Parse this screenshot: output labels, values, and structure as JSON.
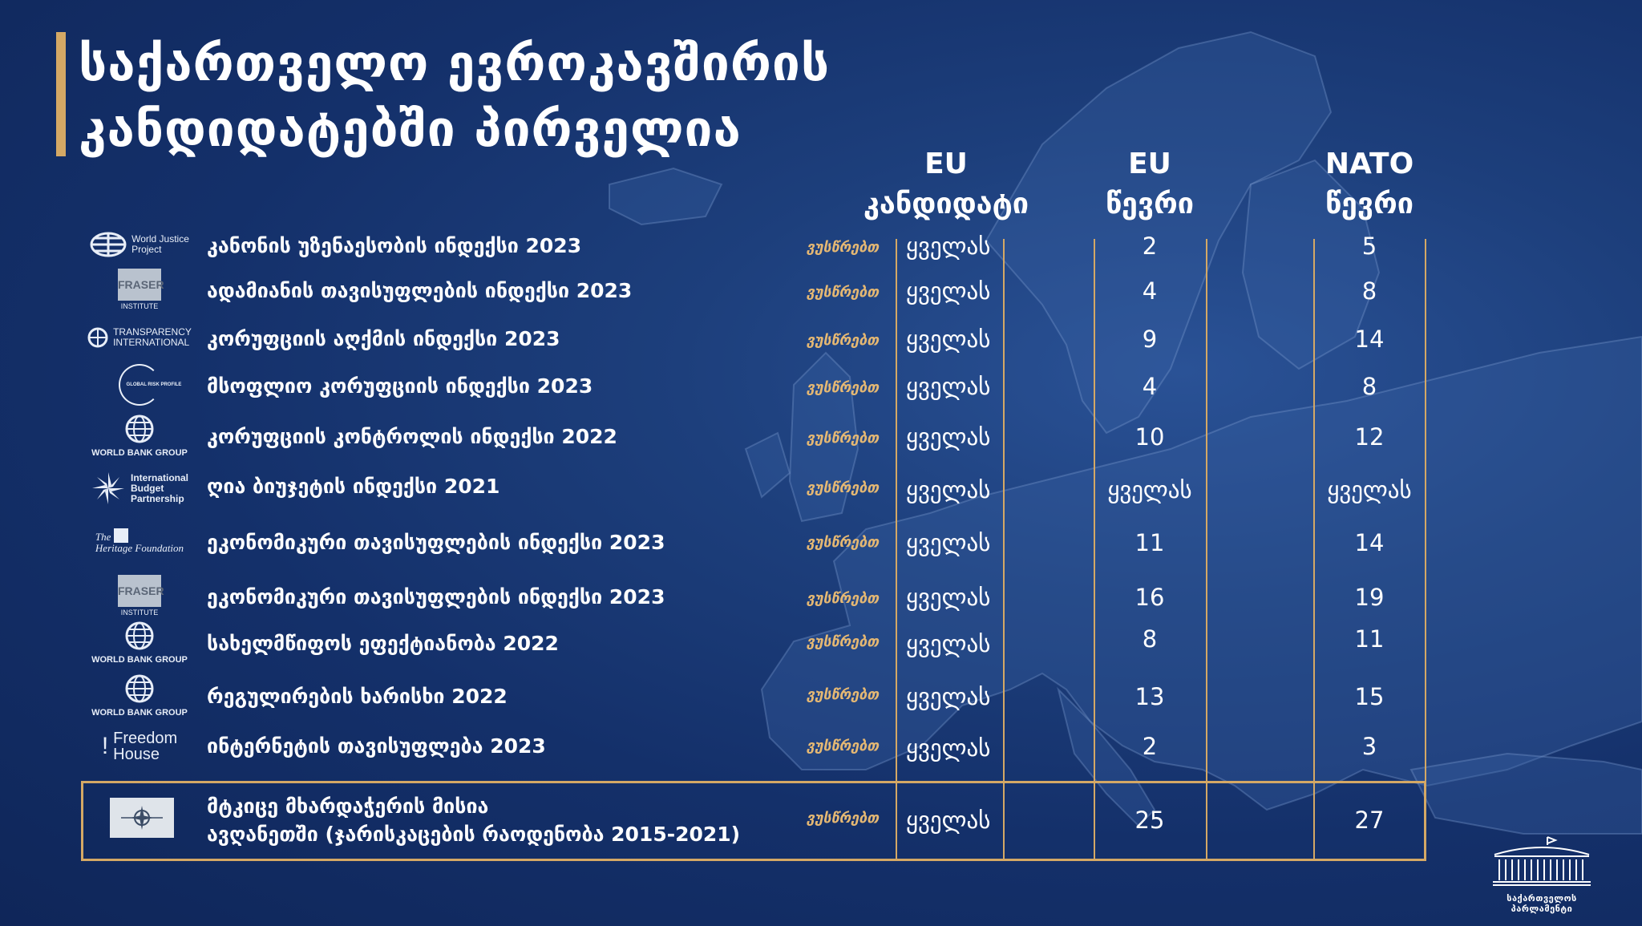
{
  "title": {
    "line1": "საქართველო ევროკავშირის",
    "line2": "კანდიდატებში პირველია"
  },
  "columns": {
    "eu_candidate": {
      "line1": "EU",
      "line2": "კანდიდატი"
    },
    "eu_member": {
      "line1": "EU",
      "line2": "წევრი"
    },
    "nato_member": {
      "line1": "NATO",
      "line2": "წევრი"
    }
  },
  "leads_label": "ვუსწრებთ",
  "rows": [
    {
      "logo_name": "world-justice-project-logo",
      "logo_text": [
        "World Justice",
        "Project"
      ],
      "label": "კანონის უზენაესობის ინდექსი 2023",
      "eu_candidate": "ყველას",
      "eu_member": "2",
      "nato_member": "5"
    },
    {
      "logo_name": "fraser-institute-logo",
      "logo_text": [
        "FRASER",
        "INSTITUTE"
      ],
      "label": "ადამიანის თავისუფლების ინდექსი 2023",
      "eu_candidate": "ყველას",
      "eu_member": "4",
      "nato_member": "8"
    },
    {
      "logo_name": "transparency-international-logo",
      "logo_text": [
        "TRANSPARENCY",
        "INTERNATIONAL"
      ],
      "label": "კორუფციის აღქმის ინდექსი 2023",
      "eu_candidate": "ყველას",
      "eu_member": "9",
      "nato_member": "14"
    },
    {
      "logo_name": "global-risk-profile-logo",
      "logo_text": [
        "GLOBAL RISK PROFILE"
      ],
      "label": "მსოფლიო კორუფციის ინდექსი 2023",
      "eu_candidate": "ყველას",
      "eu_member": "4",
      "nato_member": "8"
    },
    {
      "logo_name": "world-bank-group-logo",
      "logo_text": [
        "WORLD BANK GROUP"
      ],
      "label": "კორუფციის კონტროლის ინდექსი 2022",
      "eu_candidate": "ყველას",
      "eu_member": "10",
      "nato_member": "12"
    },
    {
      "logo_name": "international-budget-partnership-logo",
      "logo_text": [
        "International",
        "Budget",
        "Partnership"
      ],
      "label": "ღია ბიუჯეტის ინდექსი 2021",
      "eu_candidate": "ყველას",
      "eu_member": "ყველას",
      "nato_member": "ყველას"
    },
    {
      "logo_name": "heritage-foundation-logo",
      "logo_text": [
        "The",
        "Heritage Foundation"
      ],
      "label": "ეკონომიკური თავისუფლების ინდექსი 2023",
      "eu_candidate": "ყველას",
      "eu_member": "11",
      "nato_member": "14"
    },
    {
      "logo_name": "fraser-institute-logo",
      "logo_text": [
        "FRASER",
        "INSTITUTE"
      ],
      "label": "ეკონომიკური თავისუფლების ინდექსი 2023",
      "eu_candidate": "ყველას",
      "eu_member": "16",
      "nato_member": "19"
    },
    {
      "logo_name": "world-bank-group-logo",
      "logo_text": [
        "WORLD BANK GROUP"
      ],
      "label": "სახელმწიფოს ეფექტიანობა 2022",
      "eu_candidate": "ყველას",
      "eu_member": "8",
      "nato_member": "11"
    },
    {
      "logo_name": "world-bank-group-logo",
      "logo_text": [
        "WORLD BANK GROUP"
      ],
      "label": "რეგულირების ხარისხი 2022",
      "eu_candidate": "ყველას",
      "eu_member": "13",
      "nato_member": "15"
    },
    {
      "logo_name": "freedom-house-logo",
      "logo_text": [
        "Freedom",
        "House"
      ],
      "label": "ინტერნეტის თავისუფლება 2023",
      "eu_candidate": "ყველას",
      "eu_member": "2",
      "nato_member": "3"
    }
  ],
  "last_row": {
    "label_line1": "მტკიცე მხარდაჭერის მისია",
    "label_line2": "ავღანეთში (ჯარისკაცების რაოდენობა 2015-2021)",
    "eu_candidate": "ყველას",
    "eu_member": "25",
    "nato_member": "27"
  },
  "footer": {
    "parliament_text": "საქართველოს პარლამენტი"
  },
  "colors": {
    "accent": "#d4a865",
    "background": "#14306a",
    "leads_text": "#e5b873"
  }
}
